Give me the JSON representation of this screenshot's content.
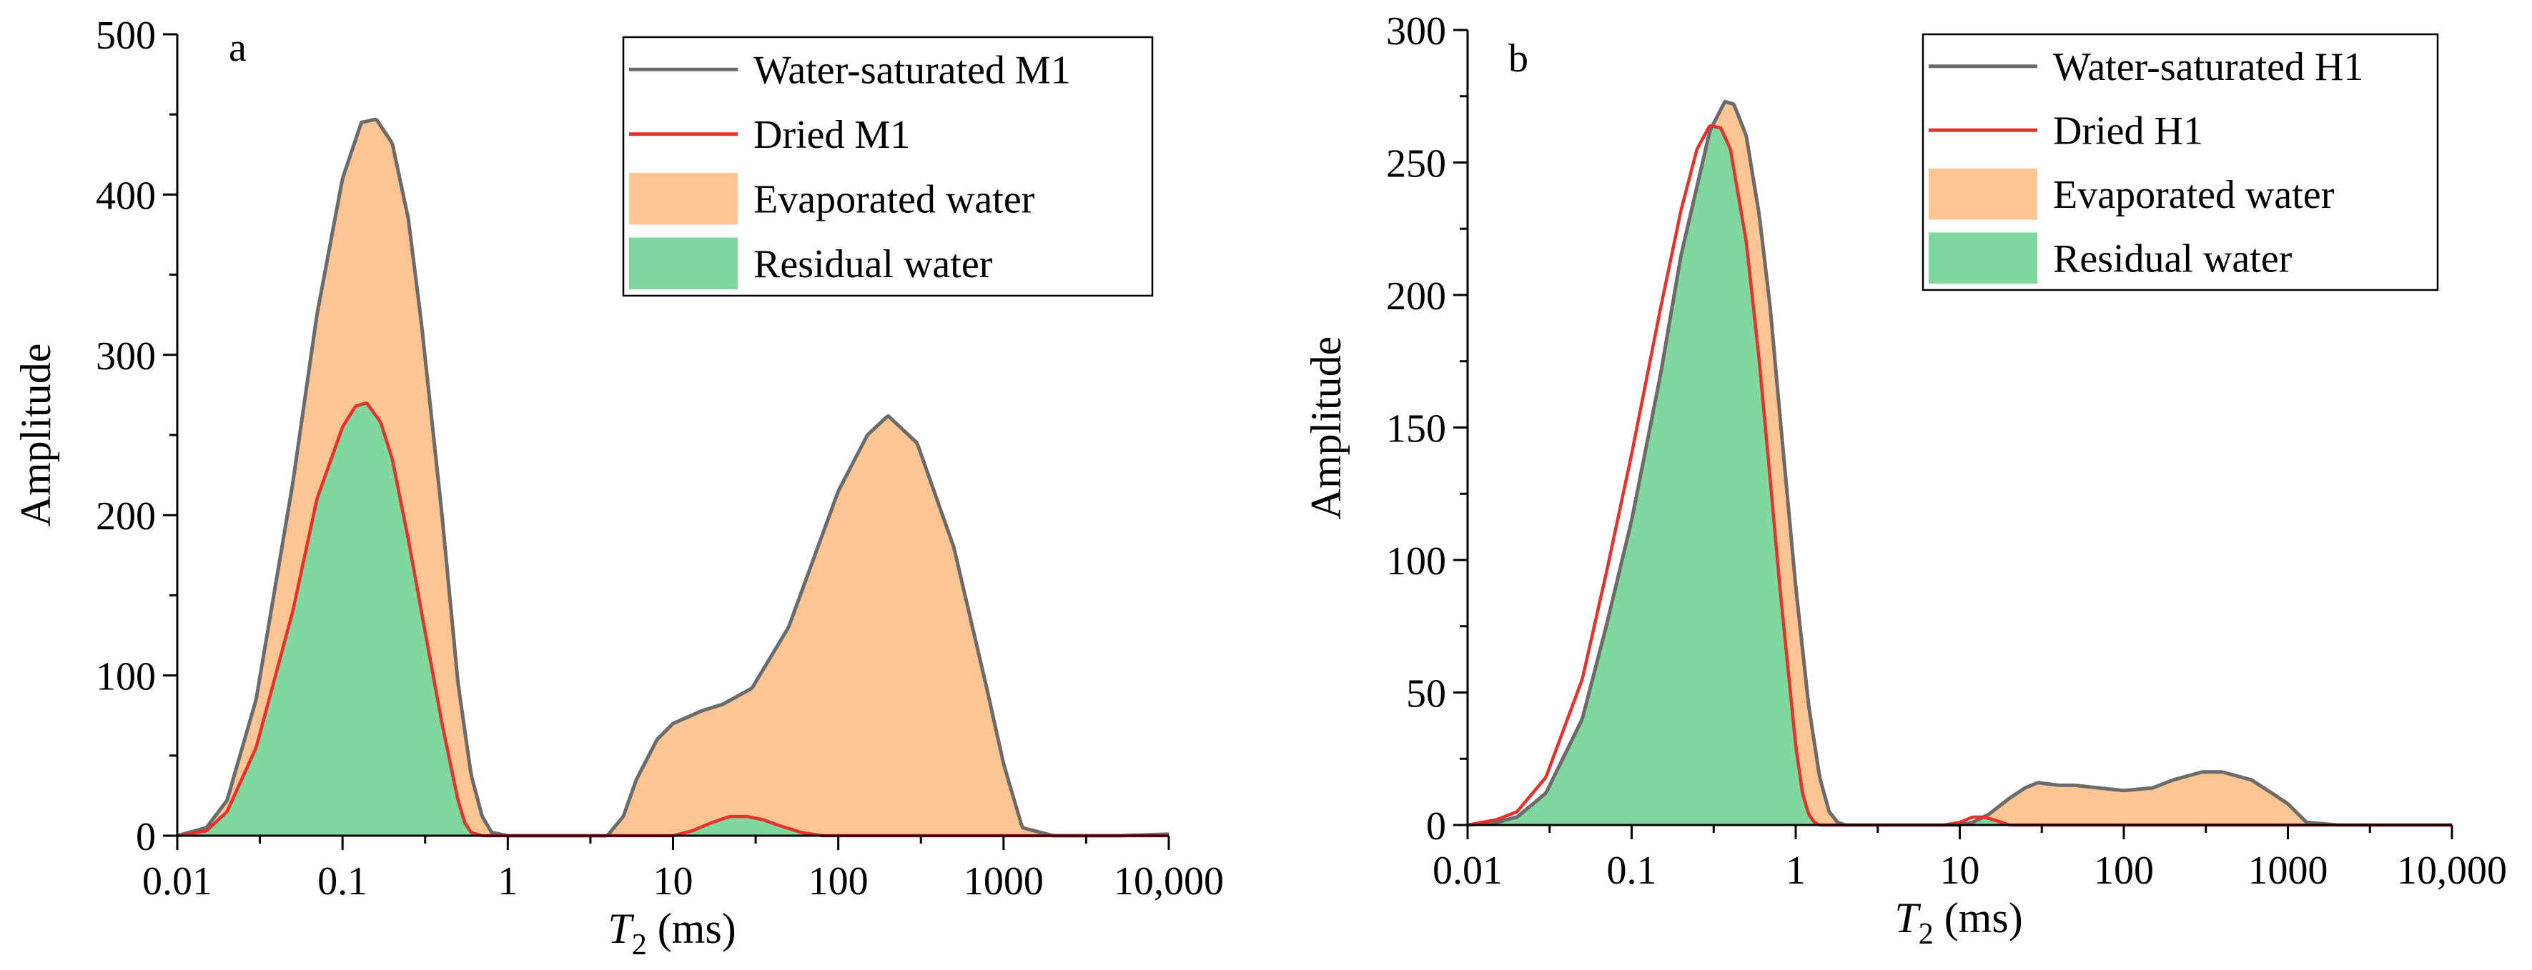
{
  "colors": {
    "saturated_line": "#6b6b6b",
    "dried_line": "#e8312b",
    "evaporated_fill": "#fcc593",
    "residual_fill": "#7fd89d",
    "axis": "#000000"
  },
  "chart_data": [
    {
      "type": "area",
      "panel_label": "a",
      "xlabel": {
        "italic": "T",
        "sub": "2",
        "rest": " (ms)"
      },
      "ylabel": "Amplitude",
      "xscale": "log",
      "xlim": [
        0.01,
        10000
      ],
      "ylim": [
        0,
        500
      ],
      "xticks": [
        {
          "value": 0.01,
          "label": "0.01"
        },
        {
          "value": 0.1,
          "label": "0.1"
        },
        {
          "value": 1,
          "label": "1"
        },
        {
          "value": 10,
          "label": "10"
        },
        {
          "value": 100,
          "label": "100"
        },
        {
          "value": 1000,
          "label": "1000"
        },
        {
          "value": 10000,
          "label": "10,000"
        }
      ],
      "yticks": [
        {
          "value": 0,
          "label": "0"
        },
        {
          "value": 100,
          "label": "100"
        },
        {
          "value": 200,
          "label": "200"
        },
        {
          "value": 300,
          "label": "300"
        },
        {
          "value": 400,
          "label": "400"
        },
        {
          "value": 500,
          "label": "500"
        }
      ],
      "legend_position": "top-right",
      "legend": [
        {
          "kind": "line",
          "series": "saturated",
          "label": "Water-saturated M1"
        },
        {
          "kind": "line",
          "series": "dried",
          "label": "Dried M1"
        },
        {
          "kind": "fill",
          "series": "evaporated",
          "label": "Evaporated water"
        },
        {
          "kind": "fill",
          "series": "residual",
          "label": "Residual water"
        }
      ],
      "series": [
        {
          "name": "Water-saturated M1",
          "key": "saturated",
          "x": [
            0.01,
            0.015,
            0.02,
            0.03,
            0.05,
            0.07,
            0.1,
            0.13,
            0.16,
            0.2,
            0.25,
            0.3,
            0.4,
            0.5,
            0.6,
            0.7,
            0.8,
            1,
            2,
            3,
            4,
            5,
            6,
            8,
            10,
            15,
            20,
            30,
            50,
            100,
            150,
            200,
            300,
            500,
            800,
            1000,
            1300,
            2000,
            5000,
            10000
          ],
          "y": [
            0,
            5,
            22,
            85,
            220,
            325,
            410,
            445,
            447,
            432,
            385,
            320,
            200,
            95,
            38,
            12,
            2,
            0,
            0,
            0,
            0,
            12,
            35,
            60,
            70,
            78,
            82,
            92,
            130,
            215,
            250,
            262,
            245,
            180,
            90,
            45,
            5,
            0,
            0,
            1
          ]
        },
        {
          "name": "Dried M1",
          "key": "dried",
          "x": [
            0.01,
            0.015,
            0.02,
            0.03,
            0.05,
            0.07,
            0.1,
            0.12,
            0.14,
            0.17,
            0.2,
            0.25,
            0.3,
            0.4,
            0.5,
            0.55,
            0.6,
            0.7,
            1,
            10,
            13,
            17,
            22,
            28,
            35,
            45,
            60,
            80,
            100,
            1000,
            10000
          ],
          "y": [
            0,
            3,
            15,
            55,
            140,
            210,
            255,
            268,
            270,
            258,
            235,
            185,
            140,
            70,
            22,
            8,
            2,
            0,
            0,
            0,
            3,
            8,
            12,
            12,
            10,
            6,
            2,
            0,
            0,
            0,
            0
          ]
        }
      ]
    },
    {
      "type": "area",
      "panel_label": "b",
      "xlabel": {
        "italic": "T",
        "sub": "2",
        "rest": " (ms)"
      },
      "ylabel": "Amplitude",
      "xscale": "log",
      "xlim": [
        0.01,
        10000
      ],
      "ylim": [
        0,
        300
      ],
      "xticks": [
        {
          "value": 0.01,
          "label": "0.01"
        },
        {
          "value": 0.1,
          "label": "0.1"
        },
        {
          "value": 1,
          "label": "1"
        },
        {
          "value": 10,
          "label": "10"
        },
        {
          "value": 100,
          "label": "100"
        },
        {
          "value": 1000,
          "label": "1000"
        },
        {
          "value": 10000,
          "label": "10,000"
        }
      ],
      "yticks": [
        {
          "value": 0,
          "label": "0"
        },
        {
          "value": 50,
          "label": "50"
        },
        {
          "value": 100,
          "label": "100"
        },
        {
          "value": 150,
          "label": "150"
        },
        {
          "value": 200,
          "label": "200"
        },
        {
          "value": 250,
          "label": "250"
        },
        {
          "value": 300,
          "label": "300"
        }
      ],
      "legend_position": "top-right",
      "legend": [
        {
          "kind": "line",
          "series": "saturated",
          "label": "Water-saturated H1"
        },
        {
          "kind": "line",
          "series": "dried",
          "label": "Dried H1"
        },
        {
          "kind": "fill",
          "series": "evaporated",
          "label": "Evaporated water"
        },
        {
          "kind": "fill",
          "series": "residual",
          "label": "Residual water"
        }
      ],
      "series": [
        {
          "name": "Water-saturated H1",
          "key": "saturated",
          "x": [
            0.01,
            0.015,
            0.02,
            0.03,
            0.05,
            0.07,
            0.1,
            0.15,
            0.2,
            0.3,
            0.37,
            0.42,
            0.5,
            0.6,
            0.7,
            0.8,
            1,
            1.2,
            1.4,
            1.6,
            1.8,
            2,
            5,
            8,
            10,
            12,
            15,
            20,
            25,
            30,
            40,
            50,
            70,
            100,
            150,
            200,
            300,
            400,
            600,
            800,
            1000,
            1300,
            2000,
            10000
          ],
          "y": [
            0,
            1,
            3,
            12,
            40,
            75,
            115,
            170,
            215,
            262,
            273,
            272,
            260,
            230,
            195,
            155,
            90,
            45,
            18,
            5,
            1,
            0,
            0,
            0,
            0,
            1,
            4,
            10,
            14,
            16,
            15,
            15,
            14,
            13,
            14,
            17,
            20,
            20,
            17,
            12,
            8,
            1,
            0,
            0
          ]
        },
        {
          "name": "Dried H1",
          "key": "dried",
          "x": [
            0.01,
            0.015,
            0.02,
            0.03,
            0.05,
            0.07,
            0.1,
            0.15,
            0.2,
            0.25,
            0.3,
            0.35,
            0.4,
            0.5,
            0.6,
            0.7,
            0.8,
            1,
            1.1,
            1.2,
            1.3,
            1.4,
            1.5,
            2,
            8,
            10,
            12,
            14,
            16,
            18,
            20,
            30,
            10000
          ],
          "y": [
            0,
            2,
            5,
            18,
            55,
            95,
            140,
            195,
            232,
            255,
            264,
            263,
            255,
            220,
            175,
            130,
            90,
            30,
            12,
            4,
            1,
            0,
            0,
            0,
            0,
            1,
            3,
            3,
            2,
            1,
            0,
            0,
            0
          ]
        }
      ]
    }
  ]
}
